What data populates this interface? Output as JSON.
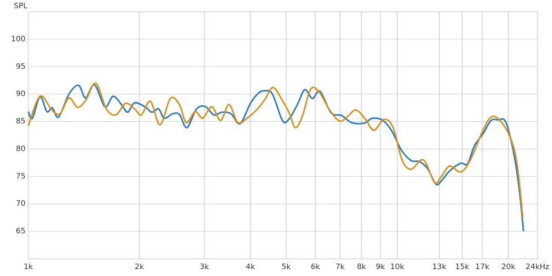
{
  "chart_data": {
    "type": "line",
    "y_label": "SPL",
    "x_scale": "log",
    "grid": true,
    "xlim": [
      1000,
      24000
    ],
    "ylim": [
      60,
      105
    ],
    "xticks": [
      {
        "value": 1000,
        "label": "1k"
      },
      {
        "value": 2000,
        "label": "2k"
      },
      {
        "value": 3000,
        "label": "3k"
      },
      {
        "value": 4000,
        "label": "4k"
      },
      {
        "value": 5000,
        "label": "5k"
      },
      {
        "value": 6000,
        "label": "6k"
      },
      {
        "value": 7000,
        "label": "7k"
      },
      {
        "value": 8000,
        "label": "8k"
      },
      {
        "value": 9000,
        "label": "9k"
      },
      {
        "value": 10000,
        "label": "10k"
      },
      {
        "value": 13000,
        "label": "13k"
      },
      {
        "value": 15000,
        "label": "15k"
      },
      {
        "value": 17000,
        "label": "17k"
      },
      {
        "value": 20000,
        "label": "20k"
      },
      {
        "value": 24000,
        "label": "24kHz"
      }
    ],
    "yticks": [
      65,
      70,
      75,
      80,
      85,
      90,
      95,
      100
    ],
    "series": [
      {
        "color": "#2b78b8",
        "x": [
          1000,
          1026,
          1076,
          1123,
          1162,
          1208,
          1289,
          1369,
          1429,
          1511,
          1613,
          1698,
          1788,
          1859,
          1941,
          2070,
          2161,
          2256,
          2335,
          2459,
          2567,
          2691,
          2858,
          3022,
          3183,
          3352,
          3545,
          3749,
          3999,
          4211,
          4377,
          4589,
          4894,
          5109,
          5380,
          5617,
          5890,
          6176,
          6616,
          7059,
          7526,
          8135,
          8564,
          9136,
          9661,
          10261,
          10898,
          11477,
          12087,
          12728,
          13174,
          13873,
          14857,
          15510,
          16193,
          17052,
          17957,
          18748,
          19572,
          20259,
          20970,
          21518,
          21985
        ],
        "values": [
          86.8,
          85.6,
          89.5,
          86.8,
          87.5,
          85.8,
          90,
          91.6,
          89.3,
          91.7,
          87.7,
          89.6,
          88.1,
          86.7,
          88.4,
          87.7,
          86.7,
          87.3,
          85.6,
          86.4,
          86.3,
          83.9,
          87.3,
          87.7,
          86.2,
          86.7,
          86.4,
          84.6,
          88.3,
          90.2,
          90.6,
          90,
          85.1,
          85.6,
          88.3,
          90.8,
          89.2,
          90.5,
          86.6,
          86.1,
          84.8,
          84.7,
          85.6,
          85.2,
          83.3,
          79.8,
          77.9,
          77.7,
          76.4,
          73.6,
          74.2,
          76,
          77.4,
          77.3,
          80.6,
          82.7,
          85.2,
          85.3,
          85.2,
          82.1,
          77,
          71.4,
          65
        ]
      },
      {
        "color": "#d4901c",
        "x": [
          1000,
          1076,
          1158,
          1219,
          1289,
          1358,
          1429,
          1524,
          1627,
          1727,
          1835,
          1941,
          2026,
          2142,
          2275,
          2427,
          2567,
          2680,
          2834,
          2971,
          3142,
          3322,
          3499,
          3701,
          3948,
          4157,
          4377,
          4609,
          4894,
          5109,
          5288,
          5521,
          5815,
          6123,
          6558,
          6967,
          7303,
          7725,
          8205,
          8640,
          9215,
          9745,
          10306,
          10898,
          11778,
          12619,
          13174,
          13873,
          14857,
          15783,
          17052,
          17957,
          18910,
          20259,
          21150,
          21890
        ],
        "values": [
          84.2,
          89.6,
          87.1,
          86.4,
          89.3,
          87.6,
          88.8,
          92,
          87.3,
          86.2,
          88.3,
          87.3,
          86.2,
          88.7,
          84.4,
          89.2,
          88.1,
          84.8,
          86.8,
          85.6,
          87.7,
          85.2,
          88.1,
          84.8,
          85.8,
          87.1,
          89,
          91.2,
          88.7,
          86.4,
          83.9,
          85.8,
          90.8,
          90.5,
          87.1,
          85.1,
          85.8,
          87.1,
          85.4,
          83.4,
          85.4,
          83.9,
          78,
          76.3,
          78,
          73.9,
          75,
          76.9,
          75.8,
          78,
          83.3,
          85.8,
          85.3,
          82.1,
          77,
          67.5
        ]
      }
    ]
  }
}
